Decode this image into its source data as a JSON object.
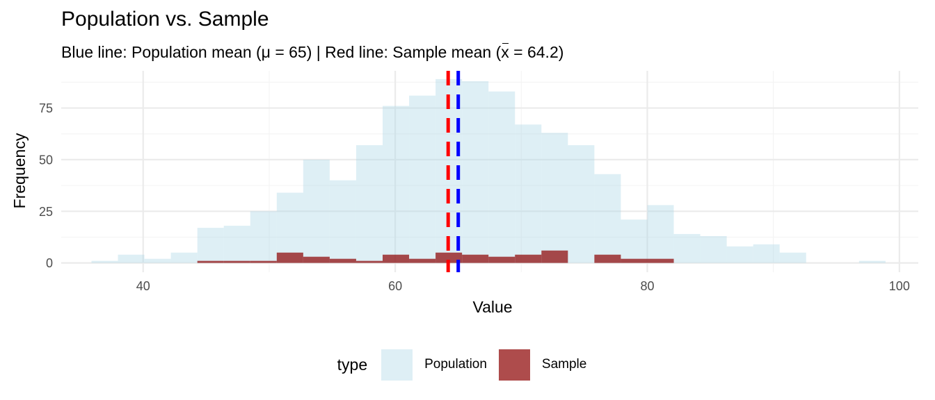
{
  "chart_data": {
    "type": "histogram",
    "title": "Population vs. Sample",
    "subtitle": {
      "before_xbar": "Blue line: Population mean (μ = 65) | Red line: Sample mean (",
      "xbar_symbol": "x",
      "after_xbar": " = 64.2)"
    },
    "xlabel": "Value",
    "ylabel": "Frequency",
    "xlim": [
      33.5,
      101.5
    ],
    "ylim": [
      -4.5,
      93
    ],
    "x_ticks": [
      40,
      60,
      80,
      100
    ],
    "y_ticks": [
      0,
      25,
      50,
      75
    ],
    "grid": true,
    "legend": {
      "title": "type",
      "position": "bottom",
      "entries": [
        "Population",
        "Sample"
      ]
    },
    "colors": {
      "population_fill": "#add8e6",
      "population_opacity": 0.4,
      "sample_fill": "#8b0000",
      "sample_opacity": 0.7,
      "population_mean_line": "#0000ff",
      "sample_mean_line": "#ff0000",
      "grid_major": "#ebebeb",
      "grid_minor": "#f4f4f4",
      "tick_text": "#4d4d4d"
    },
    "bin_width": 2.1,
    "series": [
      {
        "name": "Population",
        "bins": [
          {
            "xmin": 35.9,
            "xmax": 38.0,
            "count": 1
          },
          {
            "xmin": 38.0,
            "xmax": 40.1,
            "count": 4
          },
          {
            "xmin": 40.1,
            "xmax": 42.2,
            "count": 2
          },
          {
            "xmin": 42.2,
            "xmax": 44.3,
            "count": 5
          },
          {
            "xmin": 44.3,
            "xmax": 46.4,
            "count": 17
          },
          {
            "xmin": 46.4,
            "xmax": 48.5,
            "count": 18
          },
          {
            "xmin": 48.5,
            "xmax": 50.6,
            "count": 25
          },
          {
            "xmin": 50.6,
            "xmax": 52.7,
            "count": 34
          },
          {
            "xmin": 52.7,
            "xmax": 54.8,
            "count": 50
          },
          {
            "xmin": 54.8,
            "xmax": 56.9,
            "count": 40
          },
          {
            "xmin": 56.9,
            "xmax": 59.0,
            "count": 57
          },
          {
            "xmin": 59.0,
            "xmax": 61.1,
            "count": 76
          },
          {
            "xmin": 61.1,
            "xmax": 63.2,
            "count": 81
          },
          {
            "xmin": 63.2,
            "xmax": 65.3,
            "count": 89
          },
          {
            "xmin": 65.3,
            "xmax": 67.4,
            "count": 88
          },
          {
            "xmin": 67.4,
            "xmax": 69.5,
            "count": 83
          },
          {
            "xmin": 69.5,
            "xmax": 71.6,
            "count": 67
          },
          {
            "xmin": 71.6,
            "xmax": 73.7,
            "count": 63
          },
          {
            "xmin": 73.7,
            "xmax": 75.8,
            "count": 57
          },
          {
            "xmin": 75.8,
            "xmax": 77.9,
            "count": 43
          },
          {
            "xmin": 77.9,
            "xmax": 80.0,
            "count": 21
          },
          {
            "xmin": 80.0,
            "xmax": 82.1,
            "count": 28
          },
          {
            "xmin": 82.1,
            "xmax": 84.2,
            "count": 14
          },
          {
            "xmin": 84.2,
            "xmax": 86.3,
            "count": 13
          },
          {
            "xmin": 86.3,
            "xmax": 88.4,
            "count": 8
          },
          {
            "xmin": 88.4,
            "xmax": 90.5,
            "count": 9
          },
          {
            "xmin": 90.5,
            "xmax": 92.6,
            "count": 5
          },
          {
            "xmin": 96.8,
            "xmax": 98.9,
            "count": 1
          }
        ]
      },
      {
        "name": "Sample",
        "bins": [
          {
            "xmin": 44.3,
            "xmax": 46.4,
            "count": 1
          },
          {
            "xmin": 46.4,
            "xmax": 48.5,
            "count": 1
          },
          {
            "xmin": 48.5,
            "xmax": 50.6,
            "count": 1
          },
          {
            "xmin": 50.6,
            "xmax": 52.7,
            "count": 5
          },
          {
            "xmin": 52.7,
            "xmax": 54.8,
            "count": 3
          },
          {
            "xmin": 54.8,
            "xmax": 56.9,
            "count": 2
          },
          {
            "xmin": 56.9,
            "xmax": 59.0,
            "count": 1
          },
          {
            "xmin": 59.0,
            "xmax": 61.1,
            "count": 4
          },
          {
            "xmin": 61.1,
            "xmax": 63.2,
            "count": 2
          },
          {
            "xmin": 63.2,
            "xmax": 65.3,
            "count": 5
          },
          {
            "xmin": 65.3,
            "xmax": 67.4,
            "count": 4
          },
          {
            "xmin": 67.4,
            "xmax": 69.5,
            "count": 3
          },
          {
            "xmin": 69.5,
            "xmax": 71.6,
            "count": 4
          },
          {
            "xmin": 71.6,
            "xmax": 73.7,
            "count": 6
          },
          {
            "xmin": 75.8,
            "xmax": 77.9,
            "count": 4
          },
          {
            "xmin": 77.9,
            "xmax": 80.0,
            "count": 2
          },
          {
            "xmin": 80.0,
            "xmax": 82.1,
            "count": 2
          }
        ]
      }
    ],
    "reference_lines": [
      {
        "name": "Sample mean",
        "x": 64.2,
        "color": "#ff0000",
        "style": "dashed"
      },
      {
        "name": "Population mean",
        "x": 65,
        "color": "#0000ff",
        "style": "dashed"
      }
    ]
  }
}
